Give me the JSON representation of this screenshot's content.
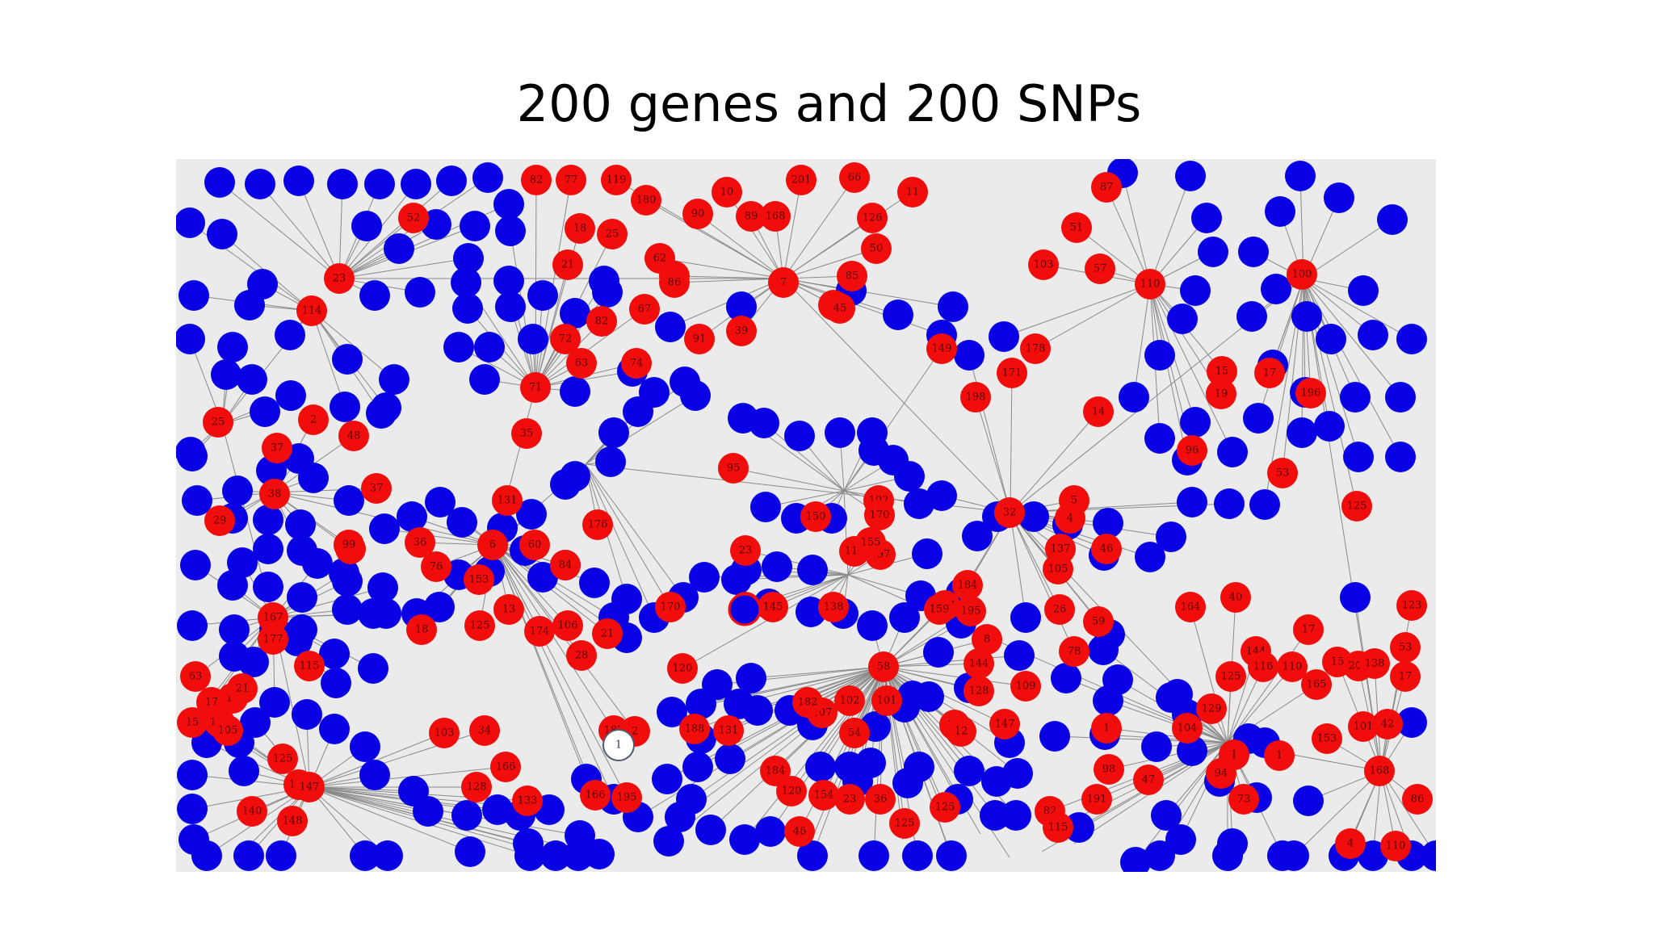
{
  "title": "200 genes and 200 SNPs",
  "network": {
    "colors": {
      "gene": "#f20d0d",
      "gene_label": "#5a0000",
      "snp": "#0a00e6",
      "edge": "#8a8a8a",
      "background": "#ebebeb"
    },
    "hubs": [
      "23",
      "114",
      "55",
      "71",
      "7",
      "11",
      "33",
      "32",
      "110",
      "100",
      "47",
      "115",
      "4",
      "156",
      "6",
      "126",
      "15",
      "9",
      "8",
      "25",
      "36",
      "13",
      "157"
    ],
    "gene_labels": [
      "82",
      "77",
      "119",
      "180",
      "10",
      "201",
      "66",
      "11",
      "87",
      "52",
      "90",
      "89",
      "168",
      "126",
      "18",
      "25",
      "21",
      "62",
      "116",
      "86",
      "50",
      "7",
      "85",
      "51",
      "103",
      "57",
      "110",
      "100",
      "53",
      "91",
      "39",
      "72",
      "82",
      "67",
      "63",
      "74",
      "45",
      "178",
      "171",
      "198",
      "15",
      "17",
      "71",
      "23",
      "114",
      "149",
      "196",
      "19",
      "14",
      "35",
      "2",
      "48",
      "37",
      "25",
      "154",
      "131",
      "192",
      "32",
      "5",
      "96",
      "53",
      "125",
      "38",
      "37",
      "29",
      "99",
      "36",
      "6",
      "60",
      "84",
      "176",
      "117",
      "197",
      "170",
      "95",
      "150",
      "23",
      "155",
      "4",
      "137",
      "184",
      "105",
      "46",
      "195",
      "187",
      "170",
      "9",
      "145",
      "138",
      "26",
      "59",
      "164",
      "167",
      "177",
      "18",
      "8",
      "40",
      "159",
      "76",
      "153",
      "13",
      "125",
      "174",
      "106",
      "21",
      "28",
      "58",
      "144",
      "78",
      "144",
      "17",
      "15",
      "53",
      "110",
      "115",
      "116",
      "165",
      "125",
      "129",
      "17",
      "201",
      "120",
      "183",
      "107",
      "102",
      "101",
      "128",
      "109",
      "32",
      "147",
      "182",
      "54",
      "12",
      "1",
      "104",
      "1",
      "1",
      "153",
      "101",
      "42",
      "107",
      "103",
      "34",
      "166",
      "128",
      "133",
      "166",
      "195",
      "2",
      "188",
      "131",
      "184",
      "120",
      "154",
      "46",
      "23",
      "36",
      "125",
      "125",
      "82",
      "115",
      "191",
      "98",
      "47",
      "94",
      "73",
      "168",
      "86",
      "4",
      "110",
      "123",
      "138",
      "63",
      "15",
      "17",
      "16",
      "21",
      "125",
      "190",
      "147",
      "140",
      "148",
      "105"
    ],
    "outline_node_label": "1"
  }
}
